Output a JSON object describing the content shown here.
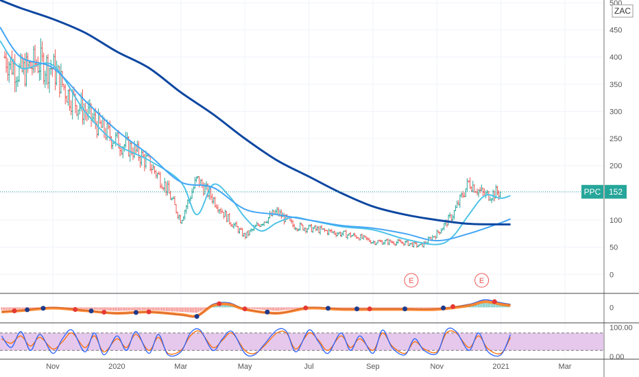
{
  "symbol": "ZAC",
  "colors": {
    "up": "#26a69a",
    "down": "#ef5350",
    "ma_fast": "#4fc3e8",
    "ma_mid": "#42a5f5",
    "ma_slow": "#0d47a1",
    "price_tag": "#26a69a",
    "stoch_band": "#e1bee7",
    "macd_line": "#2962ff",
    "signal_line": "#ff6d00"
  },
  "price_tag": {
    "label": "PPC",
    "value": "152"
  },
  "earnings_marker": "E",
  "chart_data": {
    "type": "line",
    "title": "",
    "xlabel": "",
    "ylabel": "",
    "ylim": [
      -35,
      505
    ],
    "y_ticks": [
      "500",
      "450",
      "400",
      "350",
      "300",
      "250",
      "200",
      "150",
      "100",
      "50",
      "0"
    ],
    "x_ticks": [
      "Nov",
      "2020",
      "Mar",
      "May",
      "Jul",
      "Sep",
      "Nov",
      "2021",
      "Mar"
    ],
    "x_tick_positions": [
      2,
      4,
      6,
      8,
      10,
      12,
      14,
      16,
      18
    ],
    "x_range": [
      0.35,
      19.2
    ],
    "last_price": 152,
    "earnings_x": [
      13.2,
      15.4
    ],
    "series": [
      {
        "name": "",
        "kind": "ohlc",
        "x": [
          0.5,
          1.0,
          1.5,
          2.0,
          2.5,
          3.0,
          3.5,
          4.0,
          4.5,
          5.0,
          5.5,
          6.0,
          6.5,
          7.0,
          7.5,
          8.0,
          8.5,
          9.0,
          9.5,
          10.0,
          10.5,
          11.0,
          11.5,
          12.0,
          12.5,
          13.0,
          13.5,
          14.0,
          14.5,
          15.0,
          15.5,
          16.0
        ],
        "values": [
          400,
          370,
          390,
          380,
          330,
          300,
          270,
          245,
          230,
          205,
          165,
          100,
          175,
          140,
          100,
          70,
          95,
          115,
          90,
          85,
          80,
          75,
          70,
          60,
          60,
          58,
          52,
          75,
          110,
          170,
          145,
          152
        ]
      },
      {
        "name": "",
        "kind": "ma_fast",
        "x": [
          0.35,
          1.0,
          2.0,
          3.0,
          4.0,
          5.0,
          6.0,
          6.5,
          7.0,
          7.5,
          8.0,
          8.5,
          9.0,
          9.5,
          10.0,
          11.0,
          12.0,
          13.0,
          14.0,
          14.5,
          15.0,
          15.5,
          16.0,
          16.3
        ],
        "values": [
          430,
          380,
          385,
          300,
          240,
          210,
          170,
          110,
          165,
          145,
          105,
          80,
          95,
          105,
          100,
          88,
          82,
          65,
          55,
          70,
          110,
          145,
          140,
          145
        ]
      },
      {
        "name": "",
        "kind": "ma_mid",
        "x": [
          0.35,
          1.0,
          2.0,
          3.0,
          4.0,
          5.0,
          6.0,
          7.0,
          8.0,
          9.0,
          10.0,
          11.0,
          12.0,
          13.0,
          14.0,
          15.0,
          16.0,
          16.3
        ],
        "values": [
          455,
          400,
          380,
          320,
          265,
          220,
          170,
          160,
          120,
          110,
          100,
          90,
          85,
          75,
          62,
          75,
          95,
          102
        ]
      },
      {
        "name": "",
        "kind": "ma_slow",
        "x": [
          0.35,
          1.0,
          2.0,
          3.0,
          4.0,
          5.0,
          6.0,
          7.0,
          8.0,
          9.0,
          10.0,
          11.0,
          12.0,
          13.0,
          14.0,
          15.0,
          16.0,
          16.3
        ],
        "values": [
          505,
          490,
          470,
          445,
          410,
          380,
          335,
          295,
          250,
          210,
          180,
          150,
          125,
          110,
          100,
          93,
          92,
          92
        ]
      }
    ],
    "macd": {
      "zero_label": "0",
      "x": [
        0.4,
        1.0,
        2.0,
        3.0,
        4.0,
        5.0,
        6.0,
        6.5,
        7.0,
        7.5,
        8.0,
        9.0,
        10.0,
        11.0,
        12.0,
        13.0,
        14.0,
        15.0,
        15.5,
        16.0,
        16.3
      ],
      "line": [
        -3,
        -2,
        0,
        -2,
        -4,
        -3,
        -5,
        -6,
        2,
        3,
        -1,
        -4,
        0,
        -1,
        -1,
        -1,
        -1,
        2,
        5,
        3,
        2
      ],
      "dots": [
        {
          "x": 0.8,
          "color": "red"
        },
        {
          "x": 1.2,
          "color": "blue"
        },
        {
          "x": 1.7,
          "color": "blue"
        },
        {
          "x": 2.7,
          "color": "red"
        },
        {
          "x": 3.2,
          "color": "blue"
        },
        {
          "x": 3.6,
          "color": "red"
        },
        {
          "x": 4.6,
          "color": "blue"
        },
        {
          "x": 5.0,
          "color": "red"
        },
        {
          "x": 6.5,
          "color": "blue"
        },
        {
          "x": 7.2,
          "color": "red"
        },
        {
          "x": 8.0,
          "color": "red"
        },
        {
          "x": 8.7,
          "color": "blue"
        },
        {
          "x": 9.9,
          "color": "red"
        },
        {
          "x": 10.6,
          "color": "blue"
        },
        {
          "x": 11.5,
          "color": "blue"
        },
        {
          "x": 11.9,
          "color": "red"
        },
        {
          "x": 13.0,
          "color": "blue"
        },
        {
          "x": 14.2,
          "color": "blue"
        },
        {
          "x": 14.5,
          "color": "red"
        },
        {
          "x": 15.8,
          "color": "red"
        }
      ]
    },
    "stochastic": {
      "upper": "100.00",
      "lower": "0.00",
      "band": [
        20,
        80
      ],
      "ylim": [
        -10,
        110
      ],
      "x": [
        0.4,
        0.7,
        1.0,
        1.3,
        1.6,
        2.0,
        2.3,
        2.6,
        3.0,
        3.3,
        3.6,
        4.0,
        4.3,
        4.6,
        5.0,
        5.3,
        5.6,
        6.0,
        6.3,
        6.6,
        7.0,
        7.3,
        7.6,
        8.0,
        8.3,
        8.6,
        9.0,
        9.3,
        9.6,
        10.0,
        10.3,
        10.6,
        11.0,
        11.3,
        11.6,
        12.0,
        12.3,
        12.6,
        13.0,
        13.3,
        13.6,
        14.0,
        14.3,
        14.6,
        15.0,
        15.3,
        15.6,
        16.0,
        16.3
      ],
      "k": [
        70,
        30,
        85,
        20,
        75,
        10,
        60,
        90,
        15,
        80,
        5,
        70,
        20,
        85,
        10,
        75,
        5,
        15,
        80,
        90,
        20,
        60,
        85,
        10,
        5,
        40,
        90,
        85,
        15,
        90,
        50,
        10,
        80,
        20,
        70,
        10,
        90,
        30,
        5,
        60,
        20,
        10,
        90,
        85,
        20,
        80,
        15,
        5,
        75
      ],
      "d": [
        60,
        45,
        70,
        35,
        65,
        25,
        50,
        80,
        30,
        70,
        15,
        60,
        30,
        75,
        20,
        65,
        10,
        20,
        70,
        85,
        30,
        55,
        80,
        20,
        10,
        35,
        80,
        80,
        25,
        80,
        55,
        20,
        70,
        30,
        60,
        20,
        80,
        35,
        10,
        50,
        25,
        15,
        80,
        80,
        30,
        70,
        25,
        10,
        65
      ]
    }
  }
}
